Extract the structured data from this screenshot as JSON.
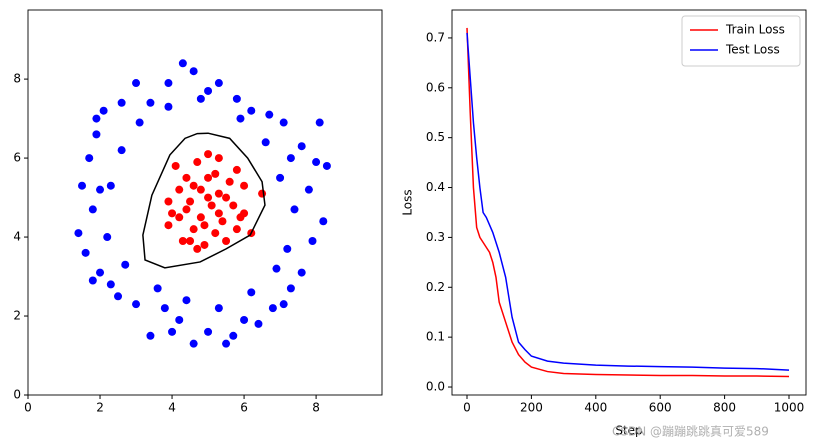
{
  "chart_data": [
    {
      "type": "scatter",
      "xlim": [
        0,
        9.83
      ],
      "ylim": [
        0,
        9.75
      ],
      "xticks": [
        0,
        2,
        4,
        6,
        8
      ],
      "yticks": [
        0,
        2,
        4,
        6,
        8
      ],
      "series": [
        {
          "color": "#0000ff",
          "x": [
            8.0,
            8.3,
            8.2,
            7.9,
            7.6,
            7.3,
            6.8,
            6.4,
            5.7,
            5.5,
            5.0,
            4.6,
            4.2,
            3.8,
            3.4,
            3.0,
            2.5,
            2.3,
            2.0,
            1.8,
            1.6,
            1.4,
            1.8,
            1.5,
            1.7,
            1.9,
            2.1,
            2.6,
            3.0,
            3.4,
            3.9,
            4.3,
            4.6,
            5.0,
            5.3,
            5.8,
            6.2,
            6.7,
            7.1,
            7.6,
            8.1,
            7.3,
            7.8,
            7.4,
            7.2,
            6.9,
            6.2,
            5.3,
            4.4,
            3.6,
            2.7,
            2.2,
            2.3,
            2.6,
            3.1,
            3.9,
            4.8,
            5.9,
            6.6,
            7.0,
            2.0,
            6.0,
            4.0,
            1.9,
            7.1
          ],
          "y": [
            5.9,
            5.8,
            4.4,
            3.9,
            3.1,
            2.7,
            2.2,
            1.8,
            1.5,
            1.3,
            1.6,
            1.3,
            1.9,
            2.2,
            1.5,
            2.3,
            2.5,
            2.8,
            3.1,
            2.9,
            3.6,
            4.1,
            4.7,
            5.3,
            6.0,
            6.6,
            7.2,
            7.4,
            7.9,
            7.4,
            7.9,
            8.4,
            8.2,
            7.7,
            7.9,
            7.5,
            7.2,
            7.1,
            6.9,
            6.3,
            6.9,
            6.0,
            5.2,
            4.7,
            3.7,
            3.2,
            2.6,
            2.2,
            2.4,
            2.7,
            3.3,
            4.0,
            5.3,
            6.2,
            6.9,
            7.3,
            7.5,
            7.0,
            6.4,
            5.5,
            5.2,
            1.9,
            1.6,
            7.0,
            2.3
          ]
        },
        {
          "color": "#ff0000",
          "x": [
            5.0,
            5.3,
            4.7,
            4.1,
            5.8,
            4.4,
            5.0,
            5.6,
            6.0,
            4.2,
            4.8,
            5.3,
            6.5,
            3.9,
            4.5,
            5.1,
            5.7,
            6.0,
            4.2,
            4.8,
            5.4,
            3.9,
            4.6,
            5.2,
            5.8,
            4.3,
            4.9,
            5.5,
            6.2,
            4.7,
            5.0,
            4.4,
            5.5,
            4.9,
            5.2,
            4.6,
            5.9,
            4.0,
            5.3,
            4.5
          ],
          "y": [
            6.1,
            6.0,
            5.9,
            5.8,
            5.7,
            5.5,
            5.5,
            5.4,
            5.3,
            5.2,
            5.2,
            5.1,
            5.1,
            4.9,
            4.9,
            4.8,
            4.8,
            4.6,
            4.5,
            4.5,
            4.4,
            4.3,
            4.2,
            4.1,
            4.2,
            3.9,
            3.8,
            3.9,
            4.1,
            3.7,
            5.0,
            4.7,
            5.0,
            4.3,
            5.6,
            5.3,
            4.5,
            4.6,
            4.6,
            3.9
          ]
        }
      ],
      "boundary": {
        "color": "#000000",
        "x": [
          5.0,
          5.6,
          6.1,
          6.5,
          6.58,
          6.17,
          5.5,
          4.78,
          3.8,
          3.25,
          3.19,
          3.44,
          3.94,
          4.36,
          4.7
        ],
        "y": [
          6.63,
          6.5,
          6.0,
          5.4,
          4.81,
          4.05,
          3.7,
          3.37,
          3.22,
          3.42,
          4.05,
          5.06,
          6.08,
          6.5,
          6.62
        ]
      }
    },
    {
      "type": "line",
      "xlabel": "Step",
      "ylabel": "Loss",
      "xlim": [
        -46.6,
        1052.8
      ],
      "ylim": [
        -0.016,
        0.756
      ],
      "xticks": [
        0,
        200,
        400,
        600,
        800,
        1000
      ],
      "yticks": [
        {
          "value": 0,
          "label": "0.0"
        },
        0.1,
        0.2,
        0.3,
        0.4,
        0.5,
        0.6,
        0.7
      ],
      "legend": "upper-right",
      "x": [
        0,
        10,
        20,
        30,
        40,
        50,
        60,
        70,
        80,
        90,
        100,
        120,
        140,
        160,
        180,
        200,
        250,
        300,
        400,
        500,
        600,
        700,
        800,
        900,
        1000
      ],
      "series": [
        {
          "name": "Train Loss",
          "color": "#ff0000",
          "values": [
            0.72,
            0.55,
            0.4,
            0.32,
            0.3,
            0.29,
            0.28,
            0.27,
            0.25,
            0.22,
            0.17,
            0.13,
            0.09,
            0.065,
            0.05,
            0.04,
            0.031,
            0.027,
            0.025,
            0.024,
            0.023,
            0.023,
            0.022,
            0.022,
            0.021
          ]
        },
        {
          "name": "Test Loss",
          "color": "#0000ff",
          "values": [
            0.71,
            0.62,
            0.53,
            0.46,
            0.4,
            0.35,
            0.34,
            0.325,
            0.31,
            0.29,
            0.27,
            0.22,
            0.14,
            0.09,
            0.075,
            0.062,
            0.052,
            0.048,
            0.044,
            0.042,
            0.041,
            0.04,
            0.038,
            0.037,
            0.034
          ]
        }
      ]
    }
  ],
  "watermark": "CSDN @蹦蹦跳跳真可爱589"
}
